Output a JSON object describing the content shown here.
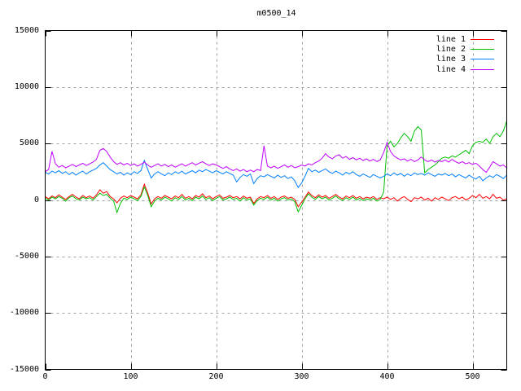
{
  "page": {
    "background": "#ffffff"
  },
  "chart_data": {
    "type": "line",
    "title": "m0500_14",
    "xlabel": "",
    "ylabel": "",
    "xlim": [
      0,
      540
    ],
    "ylim": [
      -15000,
      15000
    ],
    "x_ticks": [
      0,
      100,
      200,
      300,
      400,
      500
    ],
    "y_ticks": [
      -15000,
      -10000,
      -5000,
      0,
      5000,
      10000,
      15000
    ],
    "grid": true,
    "grid_style": "dashed",
    "grid_color": "#a0a0a0",
    "border_color": "#000000",
    "text_color": "#000000",
    "legend_position": "top-right-inside",
    "x_start": 0,
    "x_step": 4,
    "series": [
      {
        "name": "line 1",
        "color": "#ff0000",
        "values": [
          300,
          100,
          350,
          200,
          450,
          250,
          50,
          300,
          500,
          250,
          100,
          400,
          200,
          350,
          150,
          450,
          900,
          600,
          750,
          300,
          100,
          -250,
          150,
          350,
          200,
          400,
          250,
          100,
          450,
          1400,
          600,
          -350,
          100,
          300,
          150,
          400,
          250,
          100,
          350,
          200,
          500,
          150,
          300,
          100,
          400,
          250,
          550,
          200,
          350,
          100,
          300,
          450,
          150,
          250,
          400,
          200,
          300,
          100,
          350,
          150,
          250,
          -300,
          100,
          300,
          200,
          400,
          150,
          300,
          50,
          250,
          350,
          150,
          250,
          50,
          -600,
          -200,
          250,
          700,
          400,
          200,
          450,
          250,
          400,
          150,
          300,
          500,
          250,
          100,
          350,
          200,
          400,
          150,
          300,
          100,
          250,
          150,
          300,
          50,
          200,
          100,
          250,
          50,
          200,
          -100,
          150,
          300,
          50,
          -150,
          200,
          100,
          250,
          0,
          150,
          -100,
          200,
          50,
          250,
          100,
          -50,
          200,
          300,
          100,
          250,
          0,
          150,
          400,
          200,
          500,
          150,
          300,
          100,
          500,
          150,
          250,
          0,
          100
        ]
      },
      {
        "name": "line 2",
        "color": "#00c000",
        "values": [
          150,
          0,
          250,
          100,
          300,
          150,
          -100,
          200,
          350,
          100,
          0,
          250,
          100,
          200,
          0,
          300,
          600,
          400,
          500,
          150,
          -100,
          -1100,
          -300,
          150,
          50,
          250,
          100,
          -50,
          300,
          1150,
          400,
          -600,
          -100,
          150,
          0,
          250,
          100,
          -100,
          200,
          50,
          300,
          0,
          150,
          -50,
          250,
          100,
          350,
          50,
          200,
          -50,
          150,
          300,
          0,
          100,
          250,
          50,
          150,
          -100,
          200,
          0,
          100,
          -450,
          -50,
          150,
          50,
          250,
          0,
          150,
          -100,
          100,
          200,
          0,
          100,
          -150,
          -1050,
          -500,
          100,
          550,
          250,
          50,
          300,
          100,
          250,
          0,
          150,
          350,
          100,
          -50,
          200,
          50,
          250,
          0,
          150,
          -50,
          100,
          0,
          150,
          -100,
          50,
          700,
          4800,
          5200,
          4700,
          5000,
          5500,
          5900,
          5600,
          5200,
          6100,
          6500,
          6200,
          2400,
          2700,
          2900,
          3100,
          3400,
          3700,
          3800,
          3700,
          3900,
          3800,
          4000,
          4200,
          4400,
          4100,
          4800,
          5100,
          5200,
          5100,
          5400,
          5000,
          5600,
          5900,
          5600,
          6100,
          7000
        ]
      },
      {
        "name": "line 3",
        "color": "#0080ff",
        "values": [
          2450,
          2300,
          2550,
          2400,
          2600,
          2350,
          2500,
          2250,
          2450,
          2200,
          2400,
          2550,
          2300,
          2500,
          2650,
          2800,
          3100,
          3300,
          3000,
          2700,
          2500,
          2300,
          2450,
          2200,
          2400,
          2250,
          2500,
          2350,
          2600,
          3500,
          2700,
          1950,
          2300,
          2500,
          2300,
          2150,
          2400,
          2250,
          2500,
          2350,
          2550,
          2300,
          2450,
          2600,
          2400,
          2650,
          2500,
          2700,
          2550,
          2400,
          2600,
          2450,
          2300,
          2500,
          2350,
          2200,
          1600,
          2000,
          2250,
          2100,
          2300,
          1450,
          1900,
          2150,
          2050,
          2250,
          2100,
          1950,
          2200,
          2000,
          2150,
          1900,
          2050,
          1700,
          1100,
          1500,
          2100,
          2800,
          2500,
          2650,
          2450,
          2600,
          2750,
          2500,
          2350,
          2550,
          2400,
          2200,
          2450,
          2300,
          2500,
          2250,
          2100,
          2300,
          2150,
          2000,
          2250,
          2100,
          1950,
          2100,
          2300,
          2150,
          2400,
          2200,
          2350,
          2100,
          2300,
          2150,
          2400,
          2250,
          2350,
          2200,
          2400,
          2250,
          2100,
          2300,
          2200,
          2350,
          2150,
          2300,
          2050,
          2250,
          2100,
          1950,
          2200,
          2000,
          1850,
          2100,
          1700,
          1950,
          2150,
          2000,
          2250,
          2100,
          1900,
          2200
        ]
      },
      {
        "name": "line 4",
        "color": "#c000ff",
        "values": [
          2500,
          2700,
          4300,
          3200,
          2900,
          3050,
          2850,
          3000,
          3150,
          2950,
          3100,
          3250,
          3050,
          3200,
          3350,
          3600,
          4400,
          4550,
          4300,
          3800,
          3400,
          3150,
          3300,
          3100,
          3250,
          3050,
          3200,
          3000,
          3150,
          3350,
          3100,
          2900,
          3050,
          3200,
          3000,
          3150,
          2950,
          3100,
          2900,
          3050,
          3200,
          3000,
          3150,
          3300,
          3100,
          3250,
          3400,
          3200,
          3050,
          3200,
          3100,
          2950,
          2800,
          2950,
          2750,
          2600,
          2750,
          2550,
          2700,
          2500,
          2650,
          2500,
          2700,
          2600,
          4800,
          3000,
          2850,
          3000,
          2800,
          2950,
          3100,
          2900,
          3050,
          2850,
          2950,
          3100,
          3000,
          3200,
          3100,
          3300,
          3450,
          3700,
          4100,
          3800,
          3650,
          3900,
          4000,
          3700,
          3850,
          3600,
          3750,
          3550,
          3700,
          3500,
          3650,
          3450,
          3600,
          3400,
          3550,
          4200,
          5100,
          4300,
          3900,
          3700,
          3550,
          3650,
          3450,
          3600,
          3400,
          3550,
          3800,
          3550,
          3400,
          3550,
          3350,
          3500,
          3400,
          3550,
          3350,
          3600,
          3400,
          3250,
          3400,
          3200,
          3300,
          3150,
          3250,
          3000,
          2700,
          2450,
          2900,
          3400,
          3200,
          3000,
          3100,
          2850
        ]
      }
    ]
  }
}
